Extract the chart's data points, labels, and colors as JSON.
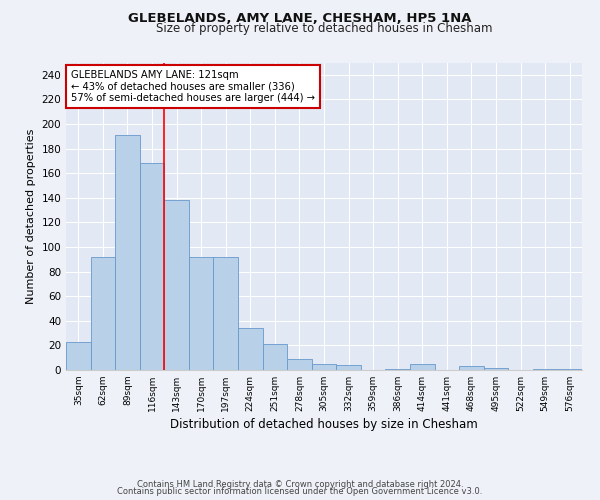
{
  "title": "GLEBELANDS, AMY LANE, CHESHAM, HP5 1NA",
  "subtitle": "Size of property relative to detached houses in Chesham",
  "xlabel": "Distribution of detached houses by size in Chesham",
  "ylabel": "Number of detached properties",
  "categories": [
    "35sqm",
    "62sqm",
    "89sqm",
    "116sqm",
    "143sqm",
    "170sqm",
    "197sqm",
    "224sqm",
    "251sqm",
    "278sqm",
    "305sqm",
    "332sqm",
    "359sqm",
    "386sqm",
    "414sqm",
    "441sqm",
    "468sqm",
    "495sqm",
    "522sqm",
    "549sqm",
    "576sqm"
  ],
  "values": [
    23,
    92,
    191,
    168,
    138,
    92,
    92,
    34,
    21,
    9,
    5,
    4,
    0,
    1,
    5,
    0,
    3,
    2,
    0,
    1,
    1
  ],
  "bar_color": "#b8d0e8",
  "bar_edge_color": "#6699cc",
  "red_line_x": 3.5,
  "annotation_text": "GLEBELANDS AMY LANE: 121sqm\n← 43% of detached houses are smaller (336)\n57% of semi-detached houses are larger (444) →",
  "annotation_box_color": "#ffffff",
  "annotation_box_edge": "#cc0000",
  "ylim": [
    0,
    250
  ],
  "yticks": [
    0,
    20,
    40,
    60,
    80,
    100,
    120,
    140,
    160,
    180,
    200,
    220,
    240
  ],
  "footer1": "Contains HM Land Registry data © Crown copyright and database right 2024.",
  "footer2": "Contains public sector information licensed under the Open Government Licence v3.0.",
  "bg_color": "#eef2f8",
  "plot_bg_color": "#e2e8f4"
}
